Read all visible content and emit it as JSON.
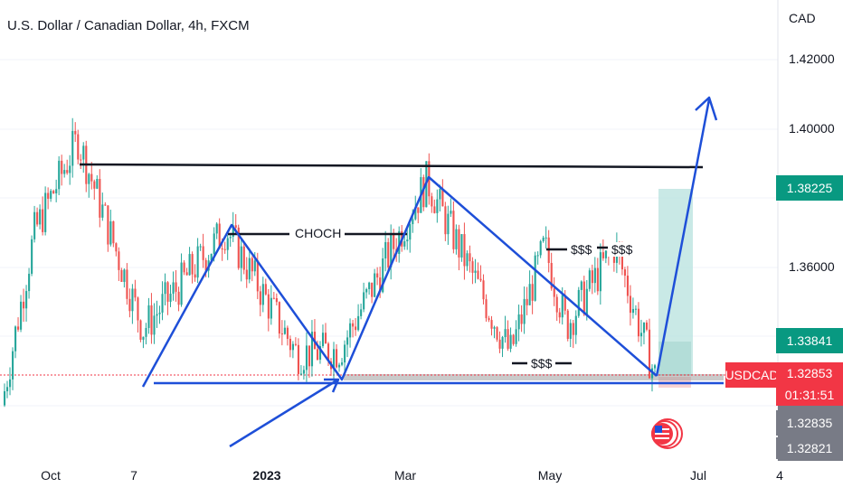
{
  "header": {
    "title": "U.S. Dollar / Canadian Dollar, 4h, FXCM",
    "currency": "CAD"
  },
  "price_badges": {
    "target": "1.38225",
    "stop": "1.33841",
    "symbol": "USDCAD",
    "last": "1.32853",
    "countdown": "01:31:51",
    "bid": "1.32835",
    "low": "1.32821"
  },
  "annotations": {
    "choch": "CHOCH",
    "liq1": "$$$",
    "liq2": "$$$",
    "liq3": "$$$"
  },
  "colors": {
    "up": "#26a69a",
    "down": "#ef5350",
    "drawing": "#1e4fd8",
    "line": "#131722",
    "target_zone": "#b2dfdb",
    "symbol_badge": "#f23645",
    "target_badge": "#089981"
  },
  "chart_data": {
    "type": "candlestick",
    "title": "U.S. Dollar / Canadian Dollar, 4h, FXCM",
    "y_axis_label": "CAD",
    "y_ticks": [
      "1.42000",
      "1.40000",
      "1.36000"
    ],
    "x_ticks": [
      "Oct",
      "7",
      "2023",
      "Mar",
      "May",
      "Jul",
      "4"
    ],
    "ylim": [
      1.315,
      1.43
    ],
    "approx_price_path": [
      {
        "date": "Sep",
        "price": 1.32
      },
      {
        "date": "Oct",
        "price": 1.37
      },
      {
        "date": "Oct",
        "price": 1.397
      },
      {
        "date": "Nov",
        "price": 1.342
      },
      {
        "date": "Dec",
        "price": 1.371
      },
      {
        "date": "Jan",
        "price": 1.335
      },
      {
        "date": "Feb",
        "price": 1.336
      },
      {
        "date": "Mar",
        "price": 1.385
      },
      {
        "date": "Apr",
        "price": 1.335
      },
      {
        "date": "May",
        "price": 1.366
      },
      {
        "date": "May",
        "price": 1.343
      },
      {
        "date": "Jun",
        "price": 1.366
      },
      {
        "date": "Jun",
        "price": 1.3285
      }
    ],
    "levels": {
      "resistance": 1.389,
      "support": 1.331,
      "target": 1.38225,
      "stop": 1.33841,
      "last": 1.32853
    }
  }
}
